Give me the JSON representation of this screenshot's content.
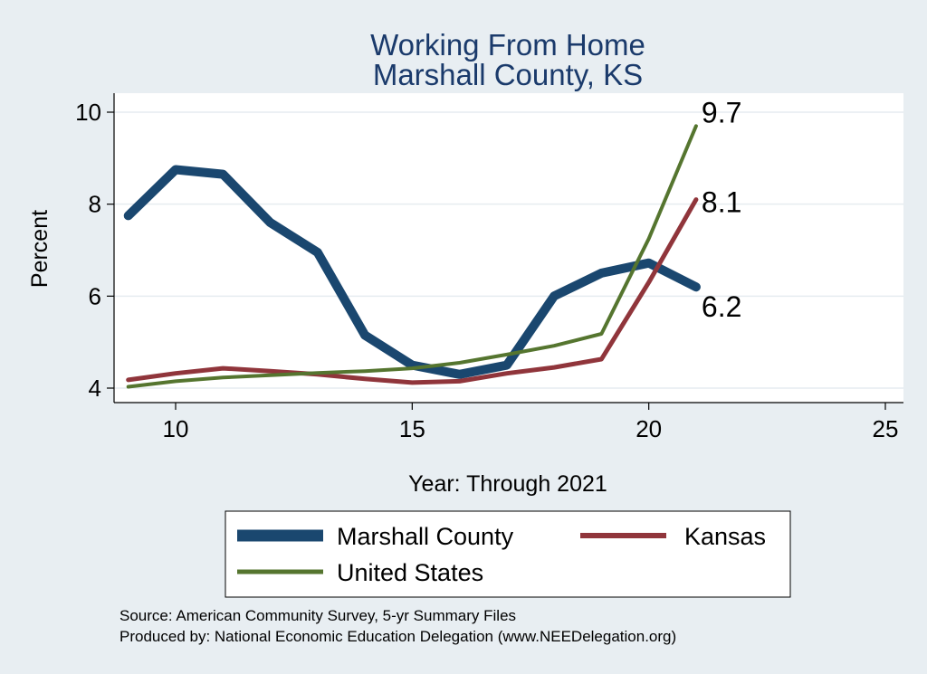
{
  "chart_data": {
    "type": "line",
    "title": [
      "Working From Home",
      "Marshall County, KS"
    ],
    "xlabel": "Year: Through 2021",
    "ylabel": "Percent",
    "xlim": [
      9,
      25
    ],
    "ylim": [
      4,
      10
    ],
    "xticks": [
      10,
      15,
      20,
      25
    ],
    "yticks": [
      4,
      6,
      8,
      10
    ],
    "grid": true,
    "legend": "bottom",
    "series": [
      {
        "name": "Marshall County",
        "color": "#1a476f",
        "x": [
          9,
          10,
          11,
          12,
          13,
          14,
          15,
          16,
          17,
          18,
          19,
          20,
          21
        ],
        "values": [
          7.75,
          8.75,
          8.65,
          7.6,
          6.95,
          5.15,
          4.5,
          4.3,
          4.5,
          6.0,
          6.5,
          6.72,
          6.2
        ],
        "end_label": "6.2"
      },
      {
        "name": "Kansas",
        "color": "#90353b",
        "x": [
          9,
          10,
          11,
          12,
          13,
          14,
          15,
          16,
          17,
          18,
          19,
          20,
          21
        ],
        "values": [
          4.18,
          4.32,
          4.43,
          4.37,
          4.3,
          4.2,
          4.12,
          4.15,
          4.32,
          4.45,
          4.63,
          6.3,
          8.1
        ],
        "end_label": "8.1"
      },
      {
        "name": "United States",
        "color": "#55752f",
        "x": [
          9,
          10,
          11,
          12,
          13,
          14,
          15,
          16,
          17,
          18,
          19,
          20,
          21
        ],
        "values": [
          4.03,
          4.15,
          4.23,
          4.28,
          4.33,
          4.37,
          4.43,
          4.55,
          4.73,
          4.92,
          5.18,
          7.25,
          9.7
        ],
        "end_label": "9.7"
      }
    ],
    "notes": [
      "Source: American Community Survey, 5-yr Summary Files",
      "Produced by: National Economic Education Delegation (www.NEEDelegation.org)"
    ]
  }
}
